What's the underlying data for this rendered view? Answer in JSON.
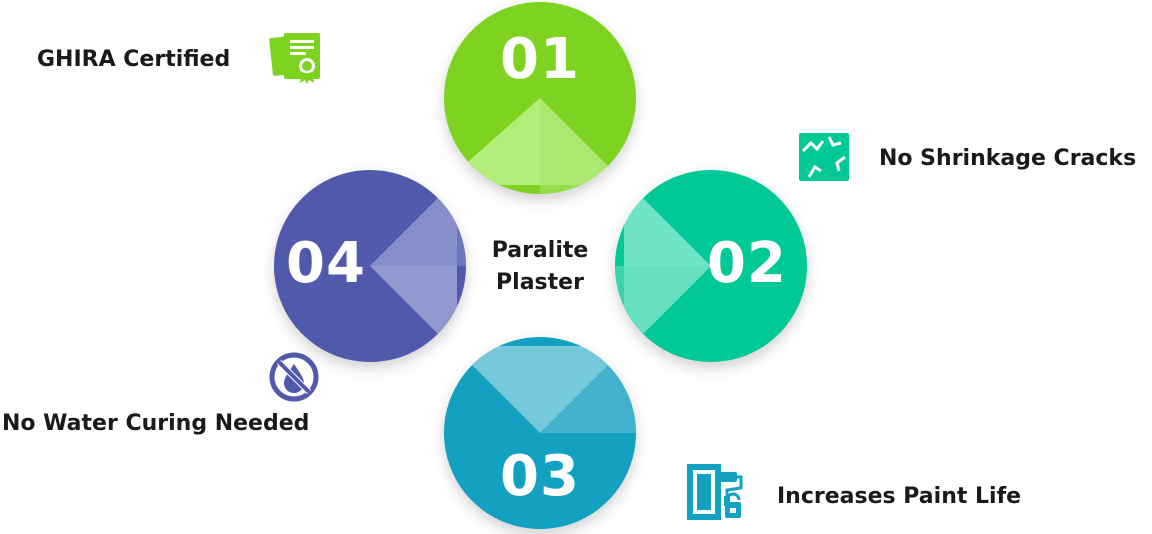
{
  "center": {
    "line1": "Paralite",
    "line2": "Plaster"
  },
  "steps": [
    {
      "number": "01",
      "label": "GHIRA Certified",
      "icon": "certificate-icon",
      "color": "#7ed321",
      "accent": "#b4ee7a"
    },
    {
      "number": "02",
      "label": "No Shrinkage Cracks",
      "icon": "wall-cracks-icon",
      "color": "#00c896",
      "accent": "#6ee3c6"
    },
    {
      "number": "03",
      "label": "Increases Paint Life",
      "icon": "paint-roller-bucket-icon",
      "color": "#13a1c2",
      "accent": "#74c8da"
    },
    {
      "number": "04",
      "label": "No Water Curing Needed",
      "icon": "no-water-drop-icon",
      "color": "#5159ab",
      "accent": "#9199cf"
    }
  ]
}
